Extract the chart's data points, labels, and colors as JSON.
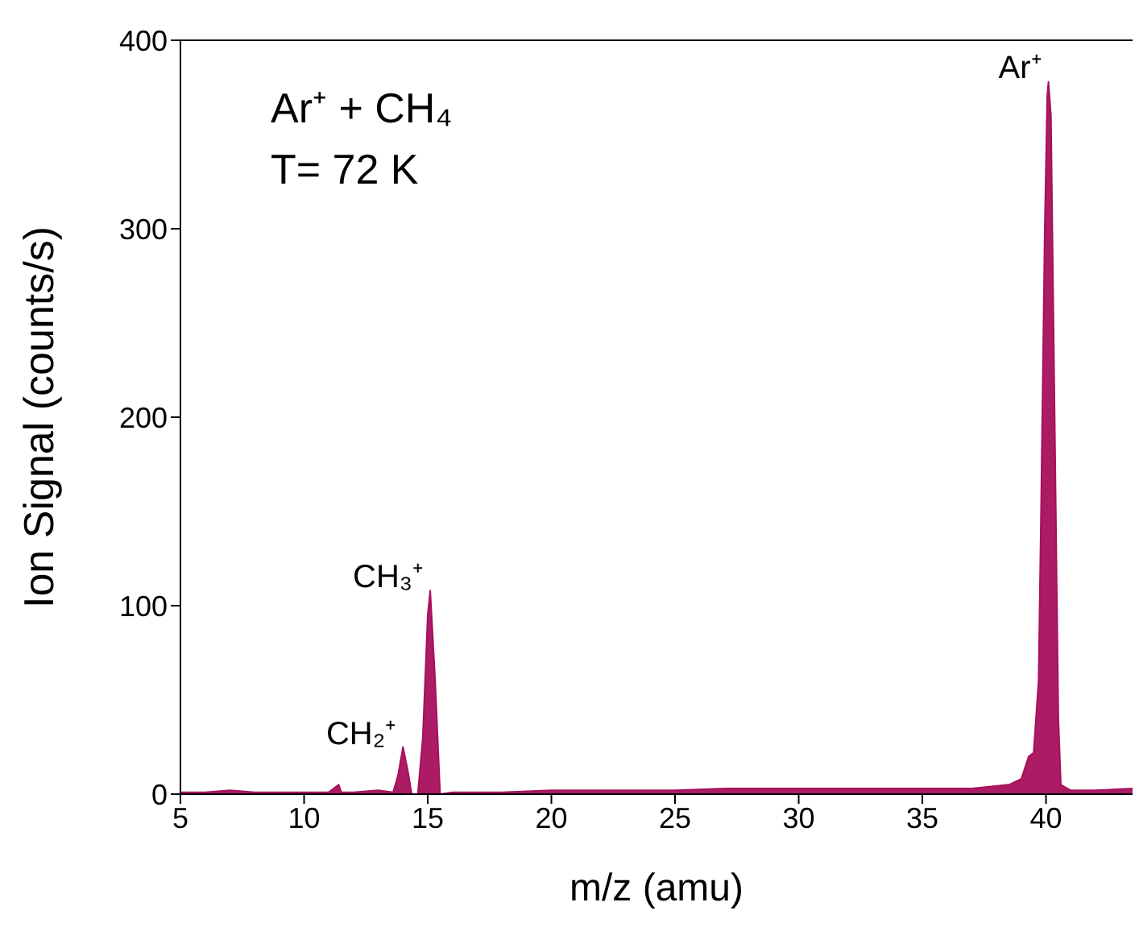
{
  "chart_data": {
    "type": "area",
    "xlabel": "m/z (amu)",
    "ylabel": "Ion Signal (counts/s)",
    "xlim": [
      5,
      43.5
    ],
    "xticks": [
      5,
      10,
      15,
      20,
      25,
      30,
      35,
      40
    ],
    "ylim": [
      0,
      400
    ],
    "yticks": [
      0,
      100,
      200,
      300,
      400
    ],
    "marker": "none",
    "annotations": [
      "Ar⁺ + CH₄",
      "T= 72 K",
      {
        "text": "CH₂⁺",
        "x": 14,
        "y": 25
      },
      {
        "text": "CH₃⁺",
        "x": 15.1,
        "y": 108
      },
      {
        "text": "Ar⁺",
        "x": 40.1,
        "y": 378
      }
    ],
    "series": [
      {
        "color": "#a8105c",
        "x": [
          5,
          6,
          7,
          8,
          9,
          10,
          11,
          11.4,
          11.5,
          12,
          13,
          13.6,
          13.8,
          14,
          14.2,
          14.35,
          14.6,
          14.8,
          15,
          15.1,
          15.3,
          15.5,
          16,
          18,
          20,
          22,
          25,
          27,
          30,
          32,
          35,
          37,
          38.5,
          39,
          39.3,
          39.5,
          39.7,
          39.8,
          39.95,
          40.05,
          40.1,
          40.2,
          40.35,
          40.5,
          40.6,
          41,
          42,
          43.5
        ],
        "values": [
          1,
          1,
          2,
          1,
          1,
          1,
          1,
          5,
          1,
          1,
          2,
          1,
          10,
          25,
          12,
          0,
          0,
          30,
          95,
          108,
          60,
          0,
          1,
          1,
          2,
          2,
          2,
          3,
          3,
          3,
          3,
          3,
          5,
          8,
          20,
          22,
          60,
          150,
          300,
          370,
          378,
          360,
          200,
          40,
          5,
          2,
          2,
          3
        ]
      }
    ]
  }
}
